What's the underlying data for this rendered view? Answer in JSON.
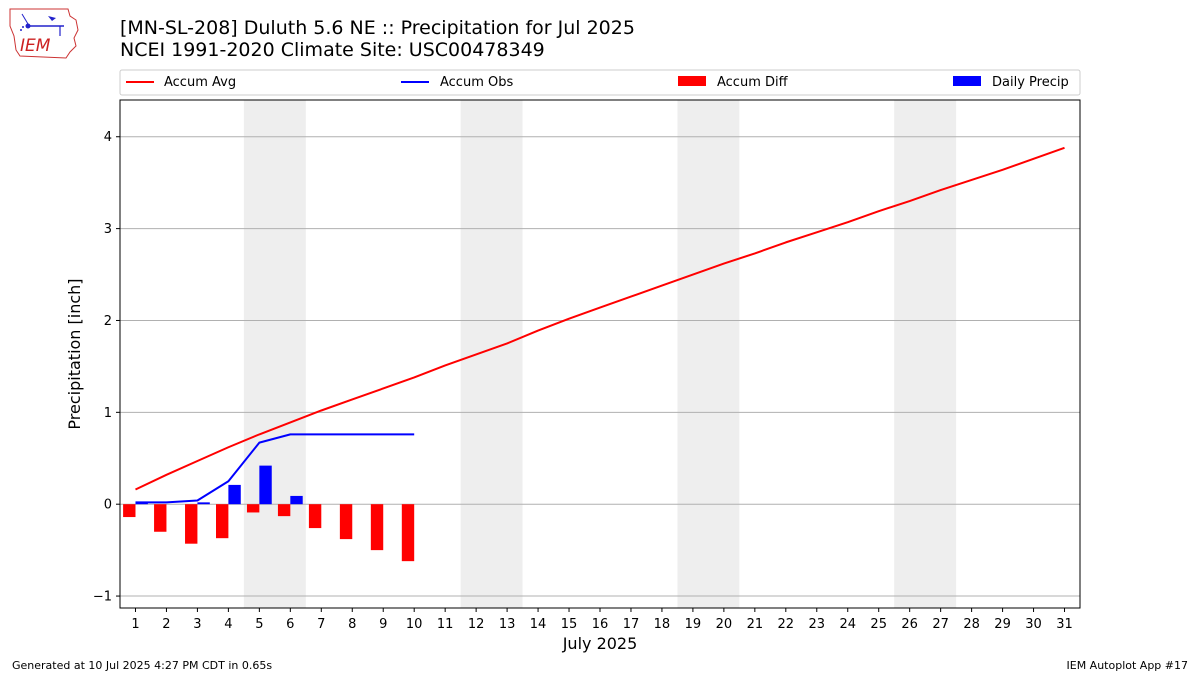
{
  "header": {
    "logo_text": "IEM",
    "title_line1": "[MN-SL-208] Duluth 5.6 NE :: Precipitation for Jul 2025",
    "title_line2": "NCEI 1991-2020 Climate Site: USC00478349"
  },
  "footer": {
    "generated": "Generated at 10 Jul 2025 4:27 PM CDT in 0.65s",
    "app": "IEM Autoplot App #17"
  },
  "colors": {
    "accum_avg": "#ff0000",
    "accum_obs": "#0000ff",
    "accum_diff": "#ff0000",
    "daily_precip": "#0000ff",
    "weekend_shade": "#eeeeee",
    "grid": "#b0b0b0"
  },
  "chart_data": {
    "type": "bar+line",
    "xlabel": "July 2025",
    "ylabel": "Precipitation [inch]",
    "xlim": [
      0.5,
      31.5
    ],
    "ylim": [
      -1.13,
      4.4
    ],
    "yticks": [
      -1,
      0,
      1,
      2,
      3,
      4
    ],
    "grid": "horizontal",
    "legend_position": "top",
    "legend": [
      "Accum Avg",
      "Accum Obs",
      "Accum Diff",
      "Daily Precip"
    ],
    "weekend_shading": [
      [
        4.5,
        6.5
      ],
      [
        11.5,
        13.5
      ],
      [
        18.5,
        20.5
      ],
      [
        25.5,
        27.5
      ]
    ],
    "days": [
      1,
      2,
      3,
      4,
      5,
      6,
      7,
      8,
      9,
      10,
      11,
      12,
      13,
      14,
      15,
      16,
      17,
      18,
      19,
      20,
      21,
      22,
      23,
      24,
      25,
      26,
      27,
      28,
      29,
      30,
      31
    ],
    "series": [
      {
        "name": "Accum Avg",
        "type": "line",
        "values": [
          0.16,
          0.32,
          0.47,
          0.62,
          0.76,
          0.89,
          1.02,
          1.14,
          1.26,
          1.38,
          1.51,
          1.63,
          1.75,
          1.89,
          2.02,
          2.14,
          2.26,
          2.38,
          2.5,
          2.62,
          2.73,
          2.85,
          2.96,
          3.07,
          3.19,
          3.3,
          3.42,
          3.53,
          3.64,
          3.76,
          3.88
        ]
      },
      {
        "name": "Accum Obs",
        "type": "line",
        "values": [
          0.02,
          0.02,
          0.04,
          0.25,
          0.67,
          0.76,
          0.76,
          0.76,
          0.76,
          0.76
        ]
      },
      {
        "name": "Accum Diff",
        "type": "bar",
        "values": [
          -0.14,
          -0.3,
          -0.43,
          -0.37,
          -0.09,
          -0.13,
          -0.26,
          -0.38,
          -0.5,
          -0.62
        ]
      },
      {
        "name": "Daily Precip",
        "type": "bar",
        "values": [
          0.02,
          0.0,
          0.02,
          0.21,
          0.42,
          0.09,
          0.0,
          0.0,
          0.0,
          0.0
        ]
      }
    ]
  }
}
